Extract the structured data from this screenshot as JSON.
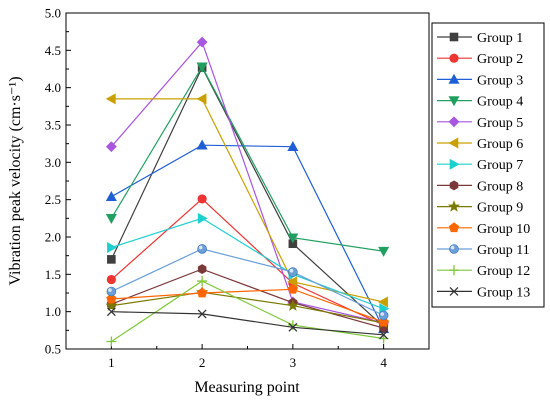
{
  "chart_data": {
    "type": "line",
    "xlabel": "Measuring point",
    "ylabel": "Vibration peak velocity (cm·s⁻¹)",
    "x": [
      1,
      2,
      3,
      4
    ],
    "xlim": [
      0.5,
      4.5
    ],
    "ylim": [
      0.5,
      5.0
    ],
    "xticks": [
      "1",
      "2",
      "3",
      "4"
    ],
    "yticks": [
      "0.5",
      "1.0",
      "1.5",
      "2.0",
      "2.5",
      "3.0",
      "3.5",
      "4.0",
      "4.5",
      "5.0"
    ],
    "grid": false,
    "legend_position": "right",
    "series": [
      {
        "name": "Group 1",
        "values": [
          1.7,
          4.27,
          1.91,
          0.8
        ],
        "color": "#3f3f3f",
        "marker": "square"
      },
      {
        "name": "Group 2",
        "values": [
          1.43,
          2.51,
          1.38,
          0.82
        ],
        "color": "#ee3333",
        "marker": "circle"
      },
      {
        "name": "Group 3",
        "values": [
          2.54,
          3.23,
          3.21,
          0.77
        ],
        "color": "#1f5fd6",
        "marker": "triangle-up"
      },
      {
        "name": "Group 4",
        "values": [
          2.25,
          4.28,
          1.99,
          1.81
        ],
        "color": "#20a060",
        "marker": "triangle-down"
      },
      {
        "name": "Group 5",
        "values": [
          3.21,
          4.61,
          1.13,
          0.85
        ],
        "color": "#a855e0",
        "marker": "diamond"
      },
      {
        "name": "Group 6",
        "values": [
          3.85,
          3.85,
          1.4,
          1.13
        ],
        "color": "#c9a000",
        "marker": "triangle-left"
      },
      {
        "name": "Group 7",
        "values": [
          1.86,
          2.25,
          1.5,
          1.04
        ],
        "color": "#1ecfcf",
        "marker": "triangle-right"
      },
      {
        "name": "Group 8",
        "values": [
          1.1,
          1.57,
          1.12,
          0.78
        ],
        "color": "#7a3838",
        "marker": "hexagon"
      },
      {
        "name": "Group 9",
        "values": [
          1.08,
          1.26,
          1.08,
          0.85
        ],
        "color": "#7a7a00",
        "marker": "star"
      },
      {
        "name": "Group 10",
        "values": [
          1.17,
          1.25,
          1.3,
          0.86
        ],
        "color": "#ff6600",
        "marker": "pentagon"
      },
      {
        "name": "Group 11",
        "values": [
          1.27,
          1.84,
          1.53,
          0.95
        ],
        "color": "#6a9ed8",
        "marker": "sphere"
      },
      {
        "name": "Group 12",
        "values": [
          0.6,
          1.41,
          0.82,
          0.64
        ],
        "color": "#7ec83a",
        "marker": "plus"
      },
      {
        "name": "Group 13",
        "values": [
          1.0,
          0.97,
          0.79,
          0.69
        ],
        "color": "#333333",
        "marker": "x"
      }
    ]
  }
}
